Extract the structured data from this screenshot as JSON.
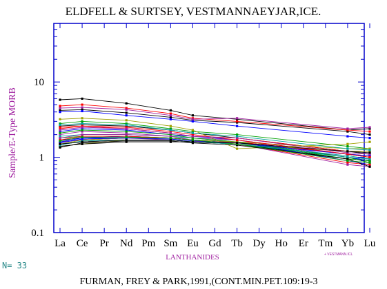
{
  "chart_data": {
    "type": "line",
    "title": "ELDFELL & SURTSEY, VESTMANNAEYJAR,ICE.",
    "ylabel": "Sample/E-Type MORB",
    "xlabel": "LANTHANIDES",
    "y_scale": "log",
    "ylim": [
      0.1,
      60
    ],
    "y_ticks": [
      "0.1",
      "1",
      "10"
    ],
    "categories": [
      "La",
      "Ce",
      "Pr",
      "Nd",
      "Pm",
      "Sm",
      "Eu",
      "Gd",
      "Tb",
      "Dy",
      "Ho",
      "Er",
      "Tm",
      "Yb",
      "Lu"
    ],
    "measured_elements": [
      "La",
      "Ce",
      "Nd",
      "Sm",
      "Eu",
      "Tb",
      "Yb",
      "Lu"
    ],
    "n_label": "N= 33",
    "legend_text": "+ VESTMANN.ICL",
    "footer": "FURMAN, FREY & PARK,1991,(CONT.MIN.PET.109:19-3",
    "series": [
      {
        "color": "#000000",
        "values": [
          5.8,
          6.0,
          null,
          5.2,
          null,
          4.2,
          3.6,
          null,
          3.2,
          null,
          null,
          null,
          null,
          2.3,
          2.4
        ]
      },
      {
        "color": "#000000",
        "values": [
          4.2,
          4.3,
          null,
          3.9,
          null,
          3.4,
          3.1,
          null,
          2.9,
          null,
          null,
          null,
          null,
          2.2,
          2.0
        ]
      },
      {
        "color": "#0000ff",
        "values": [
          4.0,
          4.1,
          null,
          3.6,
          null,
          3.2,
          3.0,
          null,
          2.6,
          null,
          null,
          null,
          null,
          1.9,
          1.8
        ]
      },
      {
        "color": "#ff0000",
        "values": [
          4.8,
          5.0,
          null,
          4.5,
          null,
          3.8,
          3.3,
          null,
          3.0,
          null,
          null,
          null,
          null,
          2.3,
          2.2
        ]
      },
      {
        "color": "#a020a0",
        "values": [
          4.5,
          4.6,
          null,
          4.3,
          null,
          3.6,
          3.2,
          null,
          3.3,
          null,
          null,
          null,
          null,
          2.4,
          2.5
        ]
      },
      {
        "color": "#00a000",
        "values": [
          2.8,
          3.0,
          null,
          2.8,
          null,
          2.4,
          2.2,
          null,
          2.0,
          null,
          null,
          null,
          null,
          1.4,
          1.3
        ]
      },
      {
        "color": "#000000",
        "values": [
          2.6,
          2.7,
          null,
          2.6,
          null,
          2.3,
          2.1,
          null,
          1.8,
          null,
          null,
          null,
          null,
          1.2,
          1.1
        ]
      },
      {
        "color": "#0000ff",
        "values": [
          2.2,
          2.4,
          null,
          2.3,
          null,
          2.0,
          1.9,
          null,
          1.7,
          null,
          null,
          null,
          null,
          1.1,
          1.0
        ]
      },
      {
        "color": "#ff0000",
        "values": [
          2.4,
          2.6,
          null,
          2.4,
          null,
          2.1,
          1.9,
          null,
          1.8,
          null,
          null,
          null,
          null,
          1.2,
          1.2
        ]
      },
      {
        "color": "#a020a0",
        "values": [
          2.0,
          2.2,
          null,
          2.1,
          null,
          1.9,
          1.8,
          null,
          1.7,
          null,
          null,
          null,
          null,
          1.0,
          0.95
        ]
      },
      {
        "color": "#a0a000",
        "values": [
          3.2,
          3.3,
          null,
          3.1,
          null,
          2.6,
          2.3,
          null,
          1.3,
          null,
          null,
          null,
          null,
          1.5,
          1.6
        ]
      },
      {
        "color": "#00a0a0",
        "values": [
          1.9,
          2.0,
          null,
          2.0,
          null,
          1.9,
          1.8,
          null,
          1.6,
          null,
          null,
          null,
          null,
          1.0,
          0.9
        ]
      },
      {
        "color": "#000000",
        "values": [
          1.6,
          1.7,
          null,
          1.8,
          null,
          1.8,
          1.7,
          null,
          1.6,
          null,
          null,
          null,
          null,
          1.1,
          1.0
        ]
      },
      {
        "color": "#0000ff",
        "values": [
          1.7,
          1.8,
          null,
          1.9,
          null,
          1.8,
          1.7,
          null,
          1.6,
          null,
          null,
          null,
          null,
          1.0,
          0.9
        ]
      },
      {
        "color": "#00a000",
        "values": [
          1.8,
          1.9,
          null,
          1.9,
          null,
          1.8,
          1.7,
          null,
          1.6,
          null,
          null,
          null,
          null,
          1.0,
          0.85
        ]
      },
      {
        "color": "#ff0000",
        "values": [
          1.5,
          1.6,
          null,
          1.7,
          null,
          1.7,
          1.6,
          null,
          1.6,
          null,
          null,
          null,
          null,
          1.1,
          1.05
        ]
      },
      {
        "color": "#a020a0",
        "values": [
          1.6,
          1.7,
          null,
          1.8,
          null,
          1.7,
          1.6,
          null,
          1.5,
          null,
          null,
          null,
          null,
          0.9,
          0.85
        ]
      },
      {
        "color": "#a0a000",
        "values": [
          1.4,
          1.5,
          null,
          1.7,
          null,
          1.7,
          1.6,
          null,
          1.5,
          null,
          null,
          null,
          null,
          1.2,
          1.2
        ]
      },
      {
        "color": "#00a0a0",
        "values": [
          1.5,
          1.6,
          null,
          1.7,
          null,
          1.7,
          1.6,
          null,
          1.5,
          null,
          null,
          null,
          null,
          1.0,
          0.95
        ]
      },
      {
        "color": "#000000",
        "values": [
          1.4,
          1.5,
          null,
          1.6,
          null,
          1.6,
          1.6,
          null,
          1.5,
          null,
          null,
          null,
          null,
          0.95,
          0.9
        ]
      },
      {
        "color": "#0000ff",
        "values": [
          1.6,
          1.8,
          null,
          1.8,
          null,
          1.8,
          1.7,
          null,
          1.6,
          null,
          null,
          null,
          null,
          0.9,
          0.8
        ]
      },
      {
        "color": "#00a000",
        "values": [
          2.1,
          2.3,
          null,
          2.2,
          null,
          2.0,
          1.8,
          null,
          1.6,
          null,
          null,
          null,
          null,
          0.95,
          0.9
        ]
      },
      {
        "color": "#ff0000",
        "values": [
          1.7,
          1.9,
          null,
          1.9,
          null,
          1.8,
          1.7,
          null,
          1.5,
          null,
          null,
          null,
          null,
          0.85,
          0.8
        ]
      },
      {
        "color": "#a020a0",
        "values": [
          1.8,
          2.0,
          null,
          2.0,
          null,
          1.9,
          1.7,
          null,
          1.5,
          null,
          null,
          null,
          null,
          0.8,
          0.75
        ]
      },
      {
        "color": "#a0a000",
        "values": [
          1.5,
          1.7,
          null,
          1.8,
          null,
          1.8,
          1.7,
          null,
          1.6,
          null,
          null,
          null,
          null,
          1.3,
          1.3
        ]
      },
      {
        "color": "#000000",
        "values": [
          1.35,
          1.55,
          null,
          1.65,
          null,
          1.65,
          1.55,
          null,
          1.45,
          null,
          null,
          null,
          null,
          0.95,
          0.75
        ]
      },
      {
        "color": "#00a0a0",
        "values": [
          1.45,
          1.65,
          null,
          1.7,
          null,
          1.7,
          1.6,
          null,
          1.5,
          null,
          null,
          null,
          null,
          1.05,
          0.95
        ]
      },
      {
        "color": "#0000ff",
        "values": [
          1.55,
          1.75,
          null,
          1.8,
          null,
          1.75,
          1.65,
          null,
          1.55,
          null,
          null,
          null,
          null,
          1.1,
          1.05
        ]
      },
      {
        "color": "#00a000",
        "values": [
          1.65,
          1.85,
          null,
          1.85,
          null,
          1.8,
          1.7,
          null,
          1.5,
          null,
          null,
          null,
          null,
          0.9,
          0.85
        ]
      },
      {
        "color": "#ff0000",
        "values": [
          2.5,
          2.6,
          null,
          2.5,
          null,
          2.2,
          2.0,
          null,
          1.7,
          null,
          null,
          null,
          null,
          1.1,
          1.0
        ]
      },
      {
        "color": "#a020a0",
        "values": [
          2.3,
          2.5,
          null,
          2.4,
          null,
          2.1,
          1.9,
          null,
          1.8,
          null,
          null,
          null,
          null,
          1.15,
          1.1
        ]
      },
      {
        "color": "#000000",
        "values": [
          1.5,
          1.6,
          null,
          1.7,
          null,
          1.7,
          1.6,
          null,
          1.55,
          null,
          null,
          null,
          null,
          1.2,
          1.15
        ]
      },
      {
        "color": "#00a0a0",
        "values": [
          2.7,
          2.8,
          null,
          2.7,
          null,
          2.3,
          2.1,
          null,
          1.9,
          null,
          null,
          null,
          null,
          1.3,
          1.25
        ]
      }
    ]
  }
}
